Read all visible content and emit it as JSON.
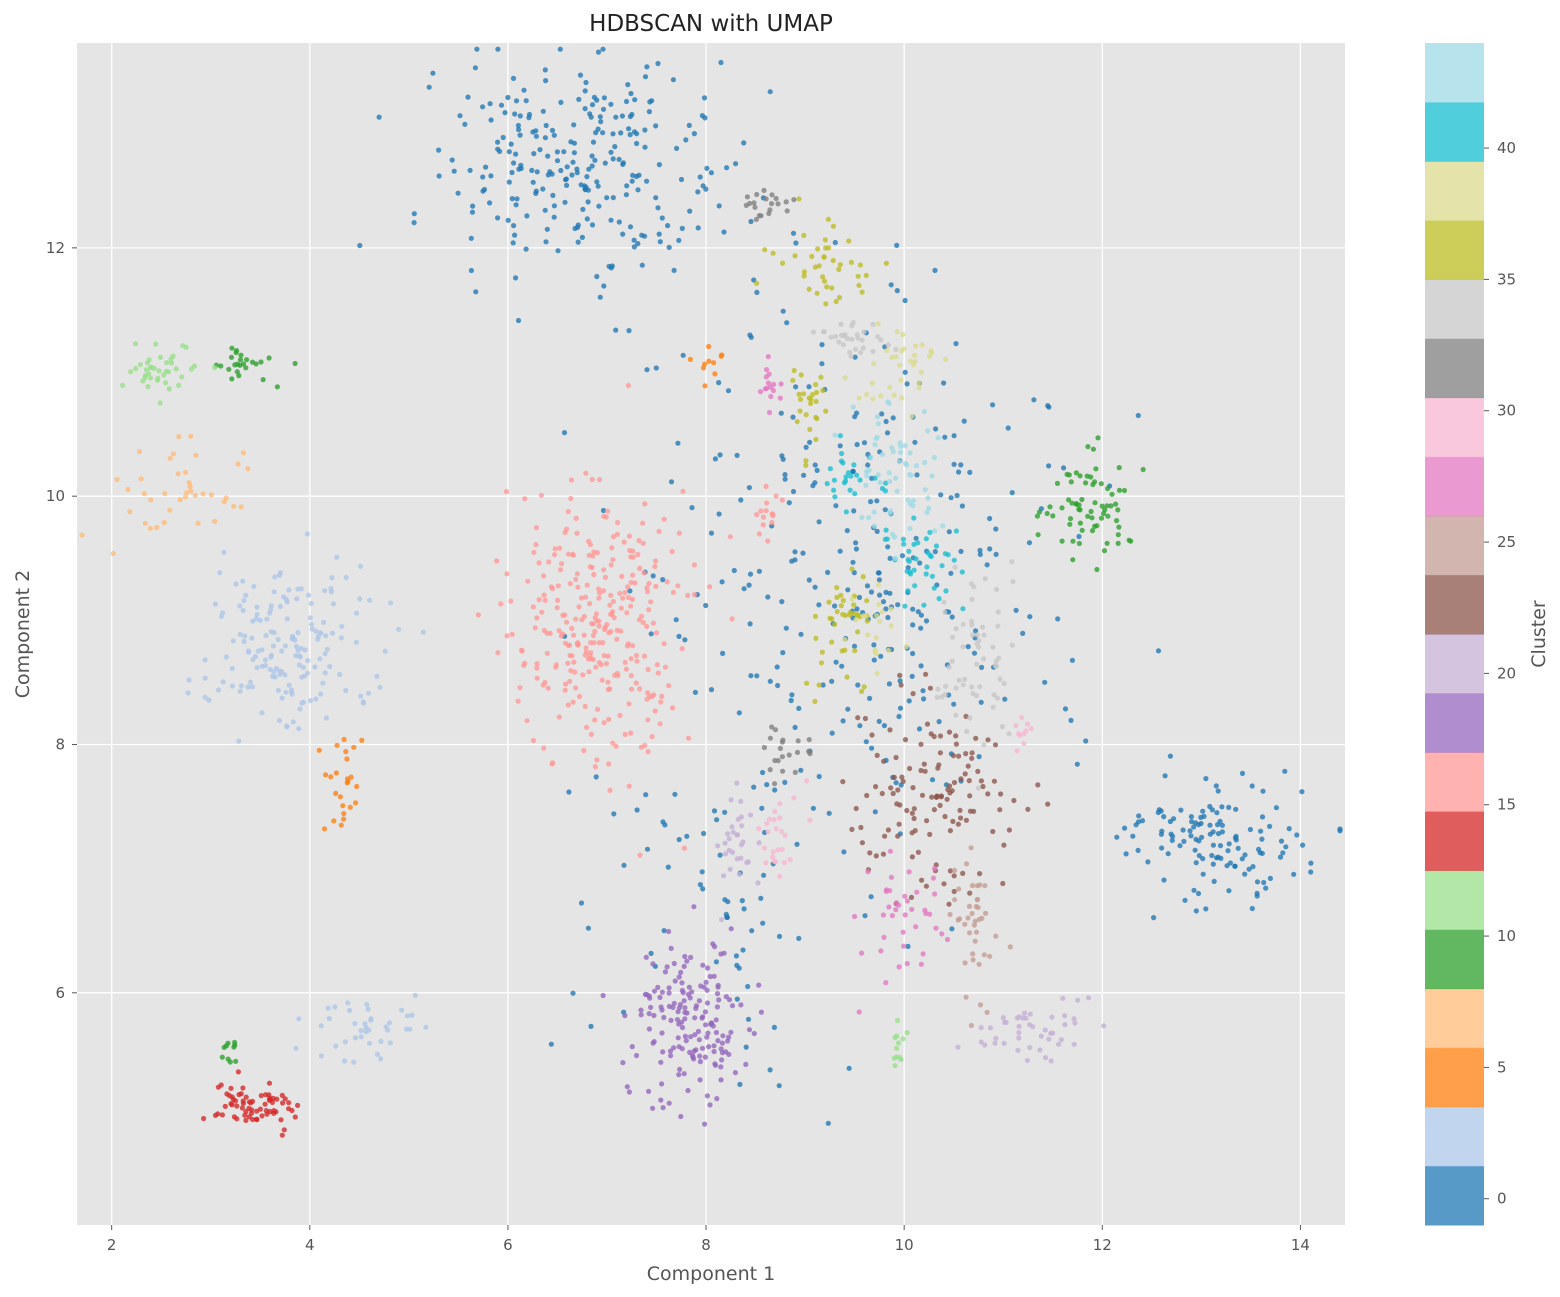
{
  "chart_data": {
    "type": "scatter",
    "title": "HDBSCAN with UMAP",
    "xlabel": "Component 1",
    "ylabel": "Component 2",
    "xlim": [
      1.65,
      14.45
    ],
    "ylim": [
      4.13,
      13.65
    ],
    "grid": true,
    "xticks": [
      2,
      4,
      6,
      8,
      10,
      12,
      14
    ],
    "yticks": [
      6,
      8,
      10,
      12
    ],
    "colorbar": {
      "label": "Cluster",
      "range": [
        -1,
        44
      ],
      "ticks": [
        0,
        5,
        10,
        15,
        20,
        25,
        30,
        35,
        40
      ],
      "colormap": "tab20",
      "palette": [
        "#1f77b4",
        "#aec7e8",
        "#ff7f0e",
        "#ffbb78",
        "#2ca02c",
        "#98df8a",
        "#d62728",
        "#ff9896",
        "#9467bd",
        "#c5b0d5",
        "#8c564b",
        "#c49c94",
        "#e377c2",
        "#f7b6d2",
        "#7f7f7f",
        "#c7c7c7",
        "#bcbd22",
        "#dbdb8d",
        "#17becf",
        "#9edae5"
      ]
    },
    "clusters": [
      {
        "label": 0,
        "color": "#1f77b4",
        "center": [
          6.7,
          12.65
        ],
        "spread": [
          0.75,
          0.45
        ],
        "n": 260
      },
      {
        "label": 0,
        "color": "#1f77b4",
        "center": [
          9.6,
          9.3
        ],
        "spread": [
          1.0,
          1.0
        ],
        "n": 300
      },
      {
        "label": 0,
        "color": "#1f77b4",
        "center": [
          13.2,
          7.25
        ],
        "spread": [
          0.55,
          0.28
        ],
        "n": 130
      },
      {
        "label": 0,
        "color": "#1f77b4",
        "center": [
          8.2,
          6.7
        ],
        "spread": [
          0.9,
          0.7
        ],
        "n": 60
      },
      {
        "label": 2,
        "color": "#aec7e8",
        "center": [
          3.8,
          8.8
        ],
        "spread": [
          0.45,
          0.35
        ],
        "n": 170
      },
      {
        "label": 2,
        "color": "#aec7e8",
        "center": [
          4.5,
          5.7
        ],
        "spread": [
          0.3,
          0.15
        ],
        "n": 40
      },
      {
        "label": 4,
        "color": "#ff7f0e",
        "center": [
          4.35,
          7.7
        ],
        "spread": [
          0.1,
          0.2
        ],
        "n": 25
      },
      {
        "label": 4,
        "color": "#ff7f0e",
        "center": [
          8.05,
          11.05
        ],
        "spread": [
          0.06,
          0.06
        ],
        "n": 10
      },
      {
        "label": 6,
        "color": "#ffbb78",
        "center": [
          2.7,
          10.0
        ],
        "spread": [
          0.35,
          0.2
        ],
        "n": 40
      },
      {
        "label": 8,
        "color": "#2ca02c",
        "center": [
          3.2,
          11.05
        ],
        "spread": [
          0.25,
          0.07
        ],
        "n": 25
      },
      {
        "label": 8,
        "color": "#2ca02c",
        "center": [
          11.9,
          9.95
        ],
        "spread": [
          0.2,
          0.2
        ],
        "n": 70
      },
      {
        "label": 8,
        "color": "#2ca02c",
        "center": [
          3.2,
          5.5
        ],
        "spread": [
          0.04,
          0.07
        ],
        "n": 10
      },
      {
        "label": 10,
        "color": "#98df8a",
        "center": [
          2.5,
          11.0
        ],
        "spread": [
          0.2,
          0.12
        ],
        "n": 40
      },
      {
        "label": 10,
        "color": "#98df8a",
        "center": [
          9.95,
          5.6
        ],
        "spread": [
          0.04,
          0.1
        ],
        "n": 12
      },
      {
        "label": 12,
        "color": "#d62728",
        "center": [
          3.45,
          5.1
        ],
        "spread": [
          0.22,
          0.1
        ],
        "n": 70
      },
      {
        "label": 14,
        "color": "#ff9896",
        "center": [
          6.9,
          9.0
        ],
        "spread": [
          0.45,
          0.55
        ],
        "n": 300
      },
      {
        "label": 14,
        "color": "#ff9896",
        "center": [
          8.6,
          9.9
        ],
        "spread": [
          0.05,
          0.1
        ],
        "n": 15
      },
      {
        "label": 16,
        "color": "#9467bd",
        "center": [
          7.8,
          5.8
        ],
        "spread": [
          0.3,
          0.35
        ],
        "n": 170
      },
      {
        "label": 18,
        "color": "#c5b0d5",
        "center": [
          8.3,
          7.2
        ],
        "spread": [
          0.1,
          0.25
        ],
        "n": 30
      },
      {
        "label": 18,
        "color": "#c5b0d5",
        "center": [
          11.3,
          5.7
        ],
        "spread": [
          0.35,
          0.12
        ],
        "n": 45
      },
      {
        "label": 20,
        "color": "#8c564b",
        "center": [
          10.3,
          7.6
        ],
        "spread": [
          0.4,
          0.4
        ],
        "n": 130
      },
      {
        "label": 22,
        "color": "#c49c94",
        "center": [
          10.7,
          6.6
        ],
        "spread": [
          0.12,
          0.35
        ],
        "n": 40
      },
      {
        "label": 24,
        "color": "#e377c2",
        "center": [
          10.0,
          6.6
        ],
        "spread": [
          0.2,
          0.25
        ],
        "n": 40
      },
      {
        "label": 24,
        "color": "#e377c2",
        "center": [
          8.65,
          10.9
        ],
        "spread": [
          0.06,
          0.15
        ],
        "n": 15
      },
      {
        "label": 26,
        "color": "#f7b6d2",
        "center": [
          8.7,
          7.3
        ],
        "spread": [
          0.1,
          0.2
        ],
        "n": 25
      },
      {
        "label": 26,
        "color": "#f7b6d2",
        "center": [
          11.2,
          8.1
        ],
        "spread": [
          0.05,
          0.08
        ],
        "n": 10
      },
      {
        "label": 28,
        "color": "#7f7f7f",
        "center": [
          8.8,
          7.95
        ],
        "spread": [
          0.12,
          0.15
        ],
        "n": 20
      },
      {
        "label": 28,
        "color": "#7f7f7f",
        "center": [
          8.55,
          12.35
        ],
        "spread": [
          0.15,
          0.07
        ],
        "n": 20
      },
      {
        "label": 30,
        "color": "#c7c7c7",
        "center": [
          10.75,
          8.8
        ],
        "spread": [
          0.2,
          0.4
        ],
        "n": 60
      },
      {
        "label": 30,
        "color": "#c7c7c7",
        "center": [
          9.5,
          11.3
        ],
        "spread": [
          0.2,
          0.12
        ],
        "n": 30
      },
      {
        "label": 32,
        "color": "#bcbd22",
        "center": [
          9.2,
          11.9
        ],
        "spread": [
          0.25,
          0.15
        ],
        "n": 40
      },
      {
        "label": 32,
        "color": "#bcbd22",
        "center": [
          9.35,
          8.9
        ],
        "spread": [
          0.2,
          0.25
        ],
        "n": 40
      },
      {
        "label": 32,
        "color": "#bcbd22",
        "center": [
          9.05,
          10.7
        ],
        "spread": [
          0.12,
          0.25
        ],
        "n": 25
      },
      {
        "label": 34,
        "color": "#dbdb8d",
        "center": [
          10.0,
          11.0
        ],
        "spread": [
          0.25,
          0.18
        ],
        "n": 35
      },
      {
        "label": 34,
        "color": "#dbdb8d",
        "center": [
          9.7,
          8.95
        ],
        "spread": [
          0.15,
          0.15
        ],
        "n": 20
      },
      {
        "label": 36,
        "color": "#17becf",
        "center": [
          10.2,
          9.5
        ],
        "spread": [
          0.25,
          0.2
        ],
        "n": 40
      },
      {
        "label": 36,
        "color": "#17becf",
        "center": [
          9.45,
          10.15
        ],
        "spread": [
          0.15,
          0.1
        ],
        "n": 25
      },
      {
        "label": 38,
        "color": "#9edae5",
        "center": [
          9.9,
          10.2
        ],
        "spread": [
          0.25,
          0.3
        ],
        "n": 60
      }
    ]
  }
}
